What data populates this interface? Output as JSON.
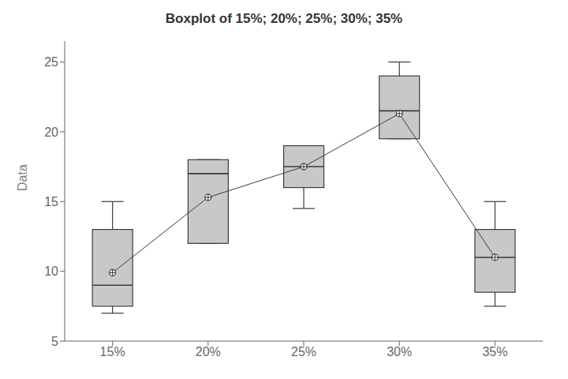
{
  "chart_data": {
    "type": "box",
    "title": "Boxplot of 15%; 20%; 25%; 30%; 35%",
    "y_label": "Data",
    "categories": [
      "15%",
      "20%",
      "25%",
      "30%",
      "35%"
    ],
    "q1": [
      7.5,
      12.0,
      16.0,
      19.5,
      8.5
    ],
    "median": [
      9.0,
      17.0,
      17.5,
      21.5,
      11.0
    ],
    "q3": [
      13.0,
      18.0,
      19.0,
      24.0,
      13.0
    ],
    "whisker_low": [
      7.0,
      12.0,
      14.5,
      19.5,
      7.5
    ],
    "whisker_high": [
      15.0,
      18.0,
      19.0,
      25.0,
      15.0
    ],
    "mean": [
      9.9,
      15.3,
      17.5,
      21.3,
      11.0
    ],
    "ylim": [
      5,
      26.5
    ],
    "yticks": [
      5,
      10,
      15,
      20,
      25
    ],
    "color": "#c8c8c8",
    "grid": false
  }
}
